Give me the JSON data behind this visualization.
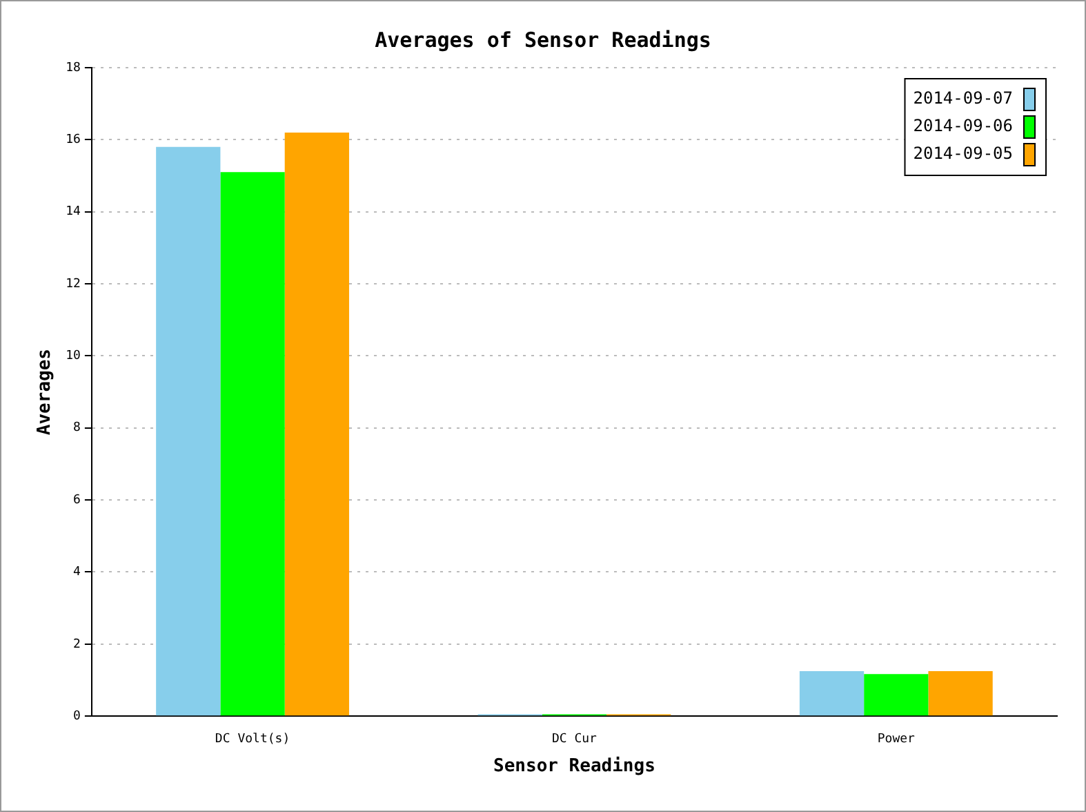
{
  "chart_data": {
    "type": "bar",
    "title": "Averages of Sensor Readings",
    "xlabel": "Sensor Readings",
    "ylabel": "Averages",
    "categories": [
      "DC Volt(s)",
      "DC Cur",
      "Power"
    ],
    "series": [
      {
        "name": "2014-09-07",
        "color": "#87ceeb",
        "values": [
          15.8,
          0.05,
          1.25
        ]
      },
      {
        "name": "2014-09-06",
        "color": "#00ff00",
        "values": [
          15.1,
          0.05,
          1.17
        ]
      },
      {
        "name": "2014-09-05",
        "color": "#ffa500",
        "values": [
          16.2,
          0.05,
          1.25
        ]
      }
    ],
    "ylim": [
      0,
      18
    ],
    "yticks": [
      0,
      2,
      4,
      6,
      8,
      10,
      12,
      14,
      16,
      18
    ],
    "grid": "y",
    "legend": "top right"
  }
}
